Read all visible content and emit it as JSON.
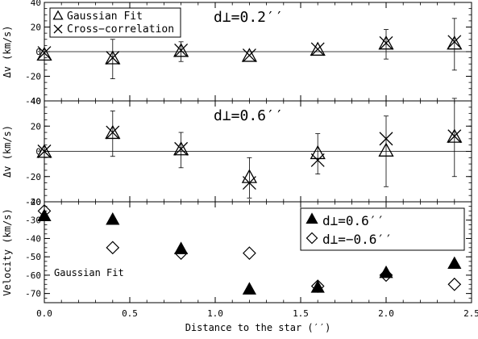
{
  "chart_data": [
    {
      "type": "scatter",
      "panel": "top",
      "ylabel": "Δv (km/s)",
      "ylim": [
        -40,
        40
      ],
      "yticks": [
        -40,
        -20,
        0,
        20,
        40
      ],
      "zero_line": true,
      "annotation": "d⊥=0.2′′",
      "legend": {
        "placement": "top-left",
        "entries": [
          {
            "marker": "△",
            "label": "Gaussian Fit"
          },
          {
            "marker": "✕",
            "label": "Cross−correlation"
          }
        ]
      },
      "series": [
        {
          "name": "Gaussian Fit",
          "marker": "open-triangle",
          "x": [
            0.0,
            0.4,
            0.8,
            1.2,
            1.6,
            2.0,
            2.4
          ],
          "y": [
            -3,
            -6,
            0,
            -4,
            1,
            6,
            6
          ],
          "yerr": [
            0,
            16,
            8,
            0,
            0,
            12,
            21
          ]
        },
        {
          "name": "Cross−correlation",
          "marker": "cross",
          "x": [
            0.0,
            0.4,
            0.8,
            1.2,
            1.6,
            2.0,
            2.4
          ],
          "y": [
            -1,
            -5,
            1,
            -3,
            2,
            7,
            8
          ],
          "yerr": [
            0,
            0,
            0,
            0,
            0,
            0,
            0
          ]
        }
      ]
    },
    {
      "type": "scatter",
      "panel": "middle",
      "ylabel": "Δv (km/s)",
      "ylim": [
        -40,
        40
      ],
      "yticks": [
        -40,
        -20,
        0,
        20,
        40
      ],
      "zero_line": true,
      "annotation": "d⊥=0.6′′",
      "series": [
        {
          "name": "Gaussian Fit",
          "marker": "open-triangle",
          "x": [
            0.0,
            0.4,
            0.8,
            1.2,
            1.6,
            2.0,
            2.4
          ],
          "y": [
            -1,
            14,
            1,
            -21,
            -2,
            0,
            11
          ],
          "yerr": [
            0,
            18,
            14,
            16,
            16,
            28,
            31
          ]
        },
        {
          "name": "Cross−correlation",
          "marker": "cross",
          "x": [
            0.0,
            0.4,
            0.8,
            1.2,
            1.6,
            2.0,
            2.4
          ],
          "y": [
            0,
            15,
            2,
            -25,
            -7,
            10,
            12
          ],
          "yerr": [
            0,
            0,
            0,
            0,
            0,
            0,
            0
          ]
        }
      ]
    },
    {
      "type": "scatter",
      "panel": "bottom",
      "ylabel": "Velocity (km/s)",
      "xlabel": "Distance to the star (′′)",
      "ylim": [
        -75,
        -20
      ],
      "yticks": [
        -70,
        -60,
        -50,
        -40,
        -30,
        -20
      ],
      "xlim": [
        0,
        2.5
      ],
      "xticks": [
        "0.0",
        "0.5",
        "1.0",
        "1.5",
        "2.0",
        "2.5"
      ],
      "annotation": "Gaussian Fit",
      "legend": {
        "placement": "top-right",
        "entries": [
          {
            "marker": "▲",
            "label": "d⊥=0.6′′"
          },
          {
            "marker": "◇",
            "label": "d⊥=−0.6′′"
          }
        ]
      },
      "series": [
        {
          "name": "d⊥=0.6′′",
          "marker": "filled-triangle",
          "x": [
            0.0,
            0.4,
            0.8,
            1.2,
            1.6,
            2.0,
            2.4
          ],
          "y": [
            -28,
            -30,
            -46,
            -68,
            -67,
            -59,
            -54
          ]
        },
        {
          "name": "d⊥=−0.6′′",
          "marker": "open-diamond",
          "x": [
            0.0,
            0.4,
            0.8,
            1.2,
            1.6,
            2.0,
            2.4
          ],
          "y": [
            -25,
            -45,
            -48,
            -48,
            -66,
            -60,
            -65
          ]
        }
      ]
    }
  ]
}
